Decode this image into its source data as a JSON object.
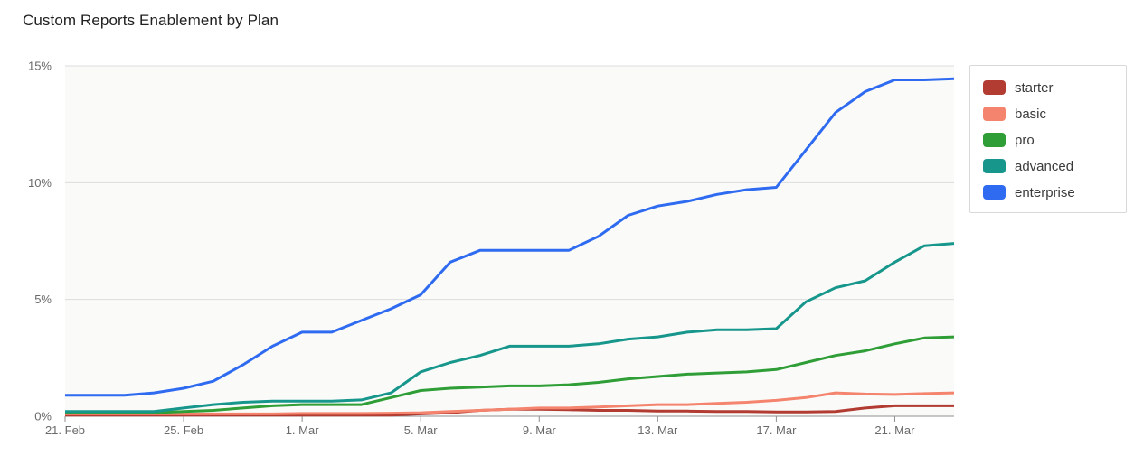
{
  "header": {
    "title": "Custom Reports Enablement by Plan"
  },
  "chart_data": {
    "type": "line",
    "title": "Custom Reports Enablement by Plan",
    "y_unit": "%",
    "ylim": [
      0,
      15
    ],
    "grid": true,
    "legend_position": "top-right",
    "categories": [
      "21 Feb",
      "22 Feb",
      "23 Feb",
      "24 Feb",
      "25 Feb",
      "26 Feb",
      "27 Feb",
      "28 Feb",
      "1 Mar",
      "2 Mar",
      "3 Mar",
      "4 Mar",
      "5 Mar",
      "6 Mar",
      "7 Mar",
      "8 Mar",
      "9 Mar",
      "10 Mar",
      "11 Mar",
      "12 Mar",
      "13 Mar",
      "14 Mar",
      "15 Mar",
      "16 Mar",
      "17 Mar",
      "18 Mar",
      "19 Mar",
      "20 Mar",
      "21 Mar",
      "22 Mar",
      "23 Mar"
    ],
    "x_tick_labels": [
      "21. Feb",
      "25. Feb",
      "1. Mar",
      "5. Mar",
      "9. Mar",
      "13. Mar",
      "17. Mar",
      "21. Mar"
    ],
    "x_tick_indices": [
      0,
      4,
      8,
      12,
      16,
      20,
      24,
      28
    ],
    "y_tick_labels": [
      "0%",
      "5%",
      "10%",
      "15%"
    ],
    "y_tick_values": [
      0,
      5,
      10,
      15
    ],
    "series": [
      {
        "name": "starter",
        "color": "#b23b32",
        "values": [
          0.05,
          0.05,
          0.05,
          0.05,
          0.05,
          0.05,
          0.05,
          0.05,
          0.05,
          0.05,
          0.05,
          0.05,
          0.1,
          0.15,
          0.25,
          0.3,
          0.3,
          0.28,
          0.25,
          0.25,
          0.22,
          0.22,
          0.2,
          0.2,
          0.18,
          0.18,
          0.2,
          0.35,
          0.45,
          0.45,
          0.45
        ]
      },
      {
        "name": "basic",
        "color": "#f4846d",
        "values": [
          0.1,
          0.1,
          0.1,
          0.1,
          0.1,
          0.1,
          0.1,
          0.1,
          0.12,
          0.12,
          0.12,
          0.13,
          0.15,
          0.2,
          0.25,
          0.3,
          0.35,
          0.35,
          0.4,
          0.45,
          0.5,
          0.5,
          0.55,
          0.6,
          0.68,
          0.8,
          1.0,
          0.95,
          0.93,
          0.97,
          1.0
        ]
      },
      {
        "name": "pro",
        "color": "#2f9e37",
        "values": [
          0.15,
          0.15,
          0.15,
          0.15,
          0.2,
          0.25,
          0.35,
          0.45,
          0.5,
          0.5,
          0.5,
          0.8,
          1.1,
          1.2,
          1.25,
          1.3,
          1.3,
          1.35,
          1.45,
          1.6,
          1.7,
          1.8,
          1.85,
          1.9,
          2.0,
          2.3,
          2.6,
          2.8,
          3.1,
          3.35,
          3.4
        ]
      },
      {
        "name": "advanced",
        "color": "#17968c",
        "values": [
          0.2,
          0.2,
          0.2,
          0.2,
          0.35,
          0.5,
          0.6,
          0.65,
          0.65,
          0.65,
          0.7,
          1.0,
          1.9,
          2.3,
          2.6,
          3.0,
          3.0,
          3.0,
          3.1,
          3.3,
          3.4,
          3.6,
          3.7,
          3.7,
          3.75,
          4.9,
          5.5,
          5.8,
          6.6,
          7.3,
          7.4
        ]
      },
      {
        "name": "enterprise",
        "color": "#2f6bf0",
        "values": [
          0.9,
          0.9,
          0.9,
          1.0,
          1.2,
          1.5,
          2.2,
          3.0,
          3.6,
          3.6,
          4.1,
          4.6,
          5.2,
          6.6,
          7.1,
          7.1,
          7.1,
          7.1,
          7.7,
          8.6,
          9.0,
          9.2,
          9.5,
          9.7,
          9.8,
          11.4,
          13.0,
          13.9,
          14.4,
          14.4,
          14.45
        ]
      }
    ],
    "colors": {
      "grid_line": "#dcdcdc",
      "axis_line": "#8f8f8f",
      "plot_background": "#f6f7f4"
    }
  }
}
